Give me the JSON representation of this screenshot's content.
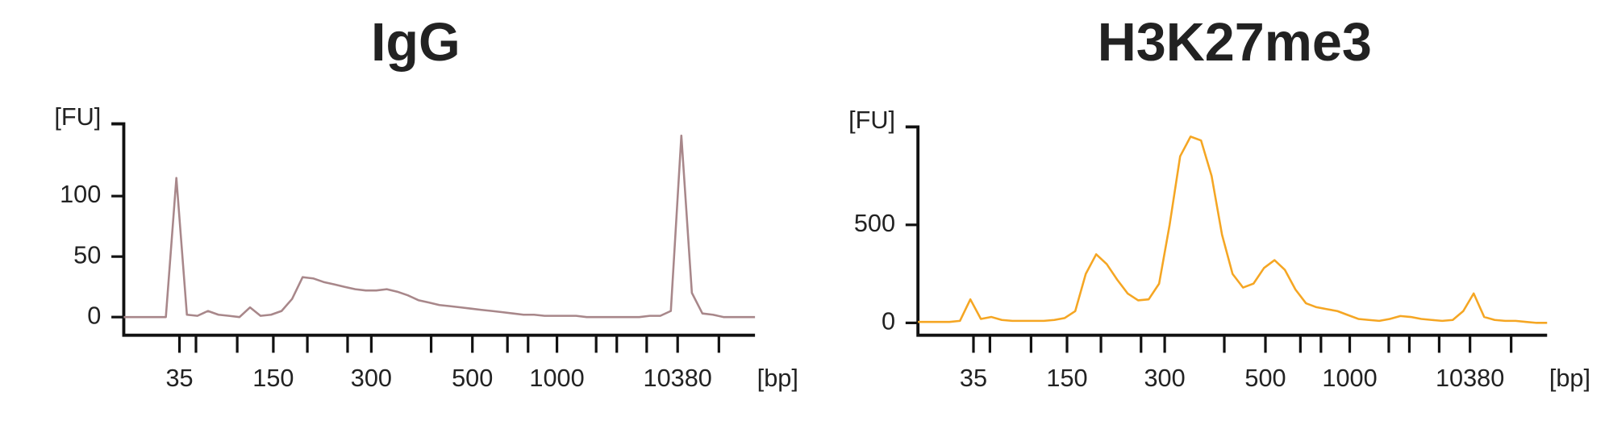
{
  "chart_data": [
    {
      "type": "line",
      "title": "IgG",
      "ylabel": "[FU]",
      "xlabel": "[bp]",
      "color": "#a8878a",
      "ylim": [
        -15,
        164
      ],
      "yticks": [
        0,
        50,
        100
      ],
      "xtick_labels": [
        35,
        null,
        null,
        150,
        null,
        null,
        300,
        null,
        500,
        null,
        null,
        1000,
        null,
        null,
        null,
        10380,
        null
      ],
      "values": [
        0,
        0,
        0,
        0,
        0,
        115,
        2,
        1,
        5,
        2,
        1,
        0,
        8,
        1,
        2,
        5,
        15,
        33,
        32,
        29,
        27,
        25,
        23,
        22,
        22,
        23,
        21,
        18,
        14,
        12,
        10,
        9,
        8,
        7,
        6,
        5,
        4,
        3,
        2,
        2,
        1,
        1,
        1,
        1,
        0,
        0,
        0,
        0,
        0,
        0,
        1,
        1,
        5,
        150,
        20,
        3,
        2,
        0,
        0,
        0,
        0
      ]
    },
    {
      "type": "line",
      "title": "H3K27me3",
      "ylabel": "[FU]",
      "xlabel": "[bp]",
      "color": "#f5a623",
      "ylim": [
        -63,
        1026
      ],
      "yticks": [
        0,
        500
      ],
      "xtick_labels": [
        35,
        null,
        null,
        150,
        null,
        null,
        300,
        null,
        500,
        null,
        null,
        1000,
        null,
        null,
        null,
        10380,
        null
      ],
      "values": [
        5,
        5,
        5,
        5,
        10,
        120,
        20,
        30,
        15,
        10,
        10,
        10,
        10,
        15,
        25,
        60,
        250,
        350,
        300,
        220,
        150,
        115,
        120,
        200,
        500,
        850,
        950,
        930,
        750,
        450,
        250,
        180,
        200,
        280,
        320,
        270,
        170,
        100,
        80,
        70,
        60,
        40,
        20,
        15,
        10,
        20,
        35,
        30,
        20,
        15,
        10,
        15,
        60,
        150,
        30,
        15,
        10,
        10,
        5,
        0,
        0
      ]
    }
  ]
}
